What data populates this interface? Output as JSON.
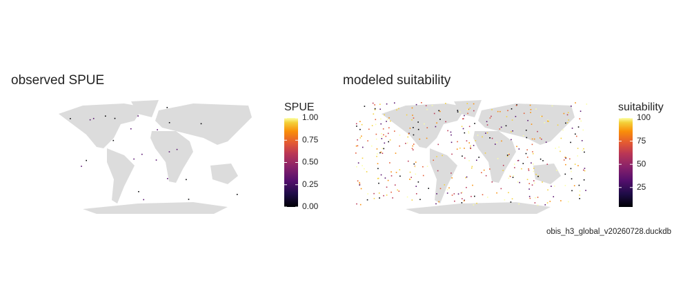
{
  "panels": [
    {
      "title": "observed SPUE",
      "legend": {
        "title": "SPUE",
        "lim": [
          0,
          1
        ],
        "ticks": [
          {
            "value": 0,
            "label": "0.00"
          },
          {
            "value": 0.25,
            "label": "0.25"
          },
          {
            "value": 0.5,
            "label": "0.50"
          },
          {
            "value": 0.75,
            "label": "0.75"
          },
          {
            "value": 1,
            "label": "1.00"
          }
        ]
      }
    },
    {
      "title": "modeled suitability",
      "legend": {
        "title": "suitability",
        "lim": [
          4,
          100
        ],
        "ticks": [
          25,
          50,
          75,
          100
        ]
      }
    }
  ],
  "caption": "obis_h3_global_v20260728.duckdb"
}
